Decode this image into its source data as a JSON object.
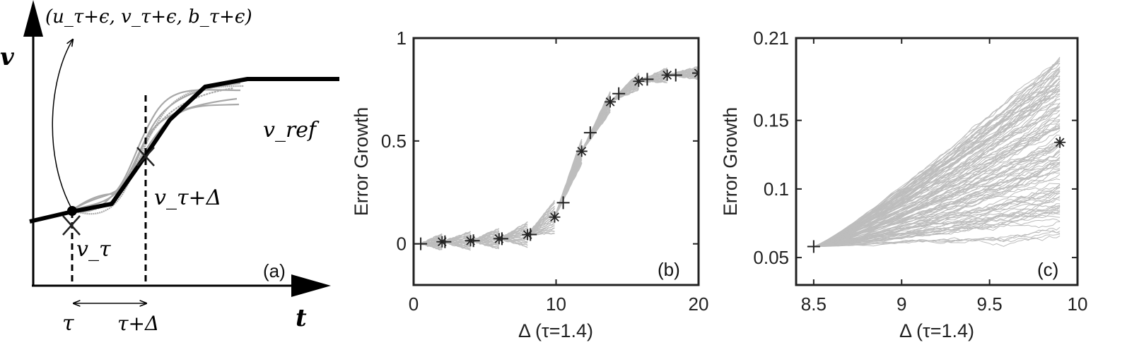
{
  "figure": {
    "panel_a": {
      "label": "(a)",
      "y_axis_label": "v",
      "x_axis_label": "t",
      "perturbation_label": "(u_τ+ϵ, v_τ+ϵ, b_τ+ϵ)",
      "reference_label": "v_ref",
      "point_tau_label": "v_τ",
      "point_tau_delta_label": "v_τ+Δ",
      "tau_label": "τ",
      "tau_delta_label": "τ+Δ"
    }
  },
  "chart_data": [
    {
      "id": "b",
      "type": "line",
      "panel_label": "(b)",
      "xlabel": "Δ (τ=1.4)",
      "ylabel": "Error Growth",
      "xlim": [
        0,
        20
      ],
      "ylim": [
        -0.2,
        1
      ],
      "xticks": [
        0,
        10,
        20
      ],
      "yticks": [
        0,
        0.5,
        1
      ],
      "xtick_labels": [
        "0",
        "10",
        "20"
      ],
      "ytick_labels": [
        "0",
        "0.5",
        "1"
      ],
      "ensemble_color": "#bdbdbd",
      "marker_color": "#222222",
      "segments": [
        {
          "x0": 0.5,
          "x1": 2,
          "y0": 0.0,
          "y1": 0.01,
          "spread": 0.04
        },
        {
          "x0": 2,
          "x1": 4,
          "y0": 0.01,
          "y1": 0.015,
          "spread": 0.045
        },
        {
          "x0": 4,
          "x1": 6,
          "y0": 0.015,
          "y1": 0.025,
          "spread": 0.05
        },
        {
          "x0": 6,
          "x1": 8,
          "y0": 0.025,
          "y1": 0.045,
          "spread": 0.06
        },
        {
          "x0": 8,
          "x1": 9.9,
          "y0": 0.045,
          "y1": 0.13,
          "spread": 0.08
        },
        {
          "x0": 9.9,
          "x1": 11.8,
          "y0": 0.13,
          "y1": 0.45,
          "spread": 0.06
        },
        {
          "x0": 11.8,
          "x1": 13.8,
          "y0": 0.45,
          "y1": 0.69,
          "spread": 0.05
        },
        {
          "x0": 13.8,
          "x1": 15.8,
          "y0": 0.69,
          "y1": 0.79,
          "spread": 0.04
        },
        {
          "x0": 15.8,
          "x1": 17.8,
          "y0": 0.79,
          "y1": 0.82,
          "spread": 0.035
        },
        {
          "x0": 17.8,
          "x1": 20,
          "y0": 0.82,
          "y1": 0.83,
          "spread": 0.03
        }
      ],
      "plus_markers": [
        {
          "x": 0.5,
          "y": 0.0
        },
        {
          "x": 2.2,
          "y": 0.01
        },
        {
          "x": 4.2,
          "y": 0.015
        },
        {
          "x": 6.2,
          "y": 0.025
        },
        {
          "x": 8.2,
          "y": 0.045
        },
        {
          "x": 10.5,
          "y": 0.2
        },
        {
          "x": 12.4,
          "y": 0.54
        },
        {
          "x": 14.4,
          "y": 0.73
        },
        {
          "x": 16.4,
          "y": 0.8
        },
        {
          "x": 18.4,
          "y": 0.82
        },
        {
          "x": 20,
          "y": 0.83
        }
      ],
      "star_markers": [
        {
          "x": 2,
          "y": 0.01
        },
        {
          "x": 4,
          "y": 0.015
        },
        {
          "x": 6,
          "y": 0.025
        },
        {
          "x": 8,
          "y": 0.045
        },
        {
          "x": 9.9,
          "y": 0.13
        },
        {
          "x": 11.8,
          "y": 0.45
        },
        {
          "x": 13.8,
          "y": 0.69
        },
        {
          "x": 15.8,
          "y": 0.79
        },
        {
          "x": 17.8,
          "y": 0.82
        },
        {
          "x": 20,
          "y": 0.83
        }
      ]
    },
    {
      "id": "c",
      "type": "line",
      "panel_label": "(c)",
      "xlabel": "Δ (τ=1.4)",
      "ylabel": "Error Growth",
      "xlim": [
        8.4,
        10
      ],
      "ylim": [
        0.03,
        0.21
      ],
      "xticks": [
        8.5,
        9,
        9.5,
        10
      ],
      "yticks": [
        0.05,
        0.1,
        0.15,
        0.21
      ],
      "xtick_labels": [
        "8.5",
        "9",
        "9.5",
        "10"
      ],
      "ytick_labels": [
        "0.05",
        "0.1",
        "0.15",
        "0.21"
      ],
      "ensemble_color": "#bdbdbd",
      "marker_color": "#222222",
      "ensemble": {
        "n": 120,
        "x_start": 8.5,
        "x_end": 9.9,
        "y_start": 0.058,
        "y_end_min": 0.06,
        "y_end_max": 0.2
      },
      "plus_markers": [
        {
          "x": 8.5,
          "y": 0.058
        }
      ],
      "star_markers": [
        {
          "x": 9.9,
          "y": 0.134
        }
      ]
    }
  ]
}
